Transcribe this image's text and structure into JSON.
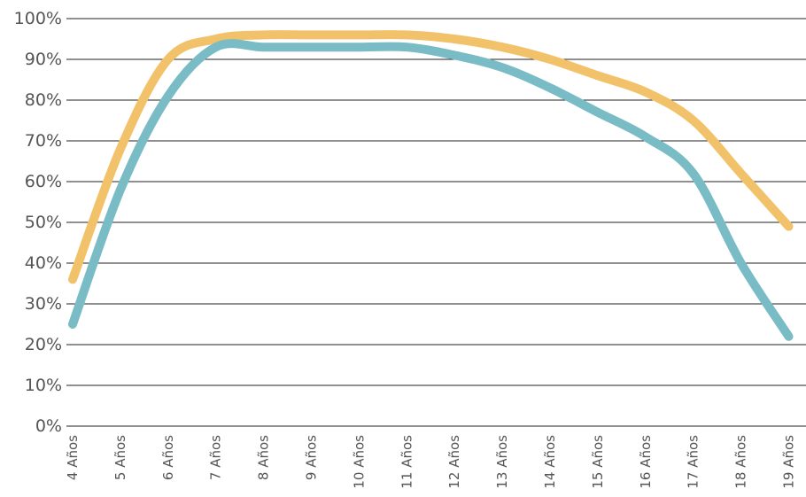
{
  "chart_data": {
    "type": "line",
    "x": [
      "4 Años",
      "5 Años",
      "6 Años",
      "7 Años",
      "8 Años",
      "9 Años",
      "10 Años",
      "11 Años",
      "12 Años",
      "13 Años",
      "14 Años",
      "15 Años",
      "16 Años",
      "17 Años",
      "18 Años",
      "19 Años"
    ],
    "y_ticks": [
      "0%",
      "10%",
      "20%",
      "30%",
      "40%",
      "50%",
      "60%",
      "70%",
      "80%",
      "90%",
      "100%"
    ],
    "ylim": [
      0,
      100
    ],
    "grid": true,
    "series": [
      {
        "color": "#f2c26b",
        "values": [
          36,
          68,
          90,
          95,
          96,
          96,
          96,
          96,
          95,
          93,
          90,
          86,
          82,
          75,
          62,
          49
        ]
      },
      {
        "color": "#79bcc6",
        "values": [
          25,
          58,
          81,
          93,
          93,
          93,
          93,
          93,
          91,
          88,
          83,
          77,
          71,
          62,
          40,
          22
        ]
      }
    ]
  }
}
